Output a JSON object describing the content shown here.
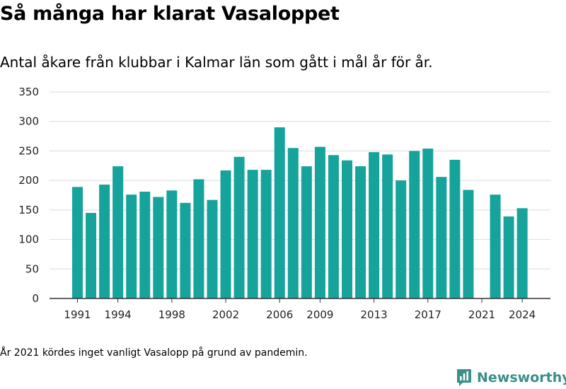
{
  "title": "Så många har klarat Vasaloppet",
  "subtitle": "Antal åkare från klubbar i Kalmar län som gått i mål år för år.",
  "footnote": "År 2021 kördes inget vanligt Vasalopp på grund av pandemin.",
  "brand": {
    "name": "Newsworthy",
    "color": "#3a8f88"
  },
  "colors": {
    "bar": "#16a39b",
    "grid": "#d9d9d9",
    "axis": "#333333"
  },
  "chart_data": {
    "type": "bar",
    "x": [
      1991,
      1992,
      1993,
      1994,
      1995,
      1996,
      1997,
      1998,
      1999,
      2000,
      2001,
      2002,
      2003,
      2004,
      2005,
      2006,
      2007,
      2008,
      2009,
      2010,
      2011,
      2012,
      2013,
      2014,
      2015,
      2016,
      2017,
      2018,
      2019,
      2020,
      2021,
      2022,
      2023,
      2024
    ],
    "values": [
      189,
      145,
      193,
      224,
      176,
      181,
      172,
      183,
      162,
      202,
      167,
      217,
      240,
      218,
      218,
      290,
      255,
      224,
      257,
      243,
      234,
      224,
      248,
      244,
      200,
      250,
      254,
      206,
      235,
      184,
      null,
      176,
      139,
      153
    ],
    "x_tick_labels": [
      1991,
      1994,
      1998,
      2002,
      2006,
      2009,
      2013,
      2017,
      2021,
      2024
    ],
    "y_ticks": [
      0,
      50,
      100,
      150,
      200,
      250,
      300,
      350
    ],
    "ylim": [
      0,
      350
    ],
    "grid": true,
    "title": "Så många har klarat Vasaloppet",
    "subtitle": "Antal åkare från klubbar i Kalmar län som gått i mål år för år.",
    "xlabel": "",
    "ylabel": ""
  }
}
